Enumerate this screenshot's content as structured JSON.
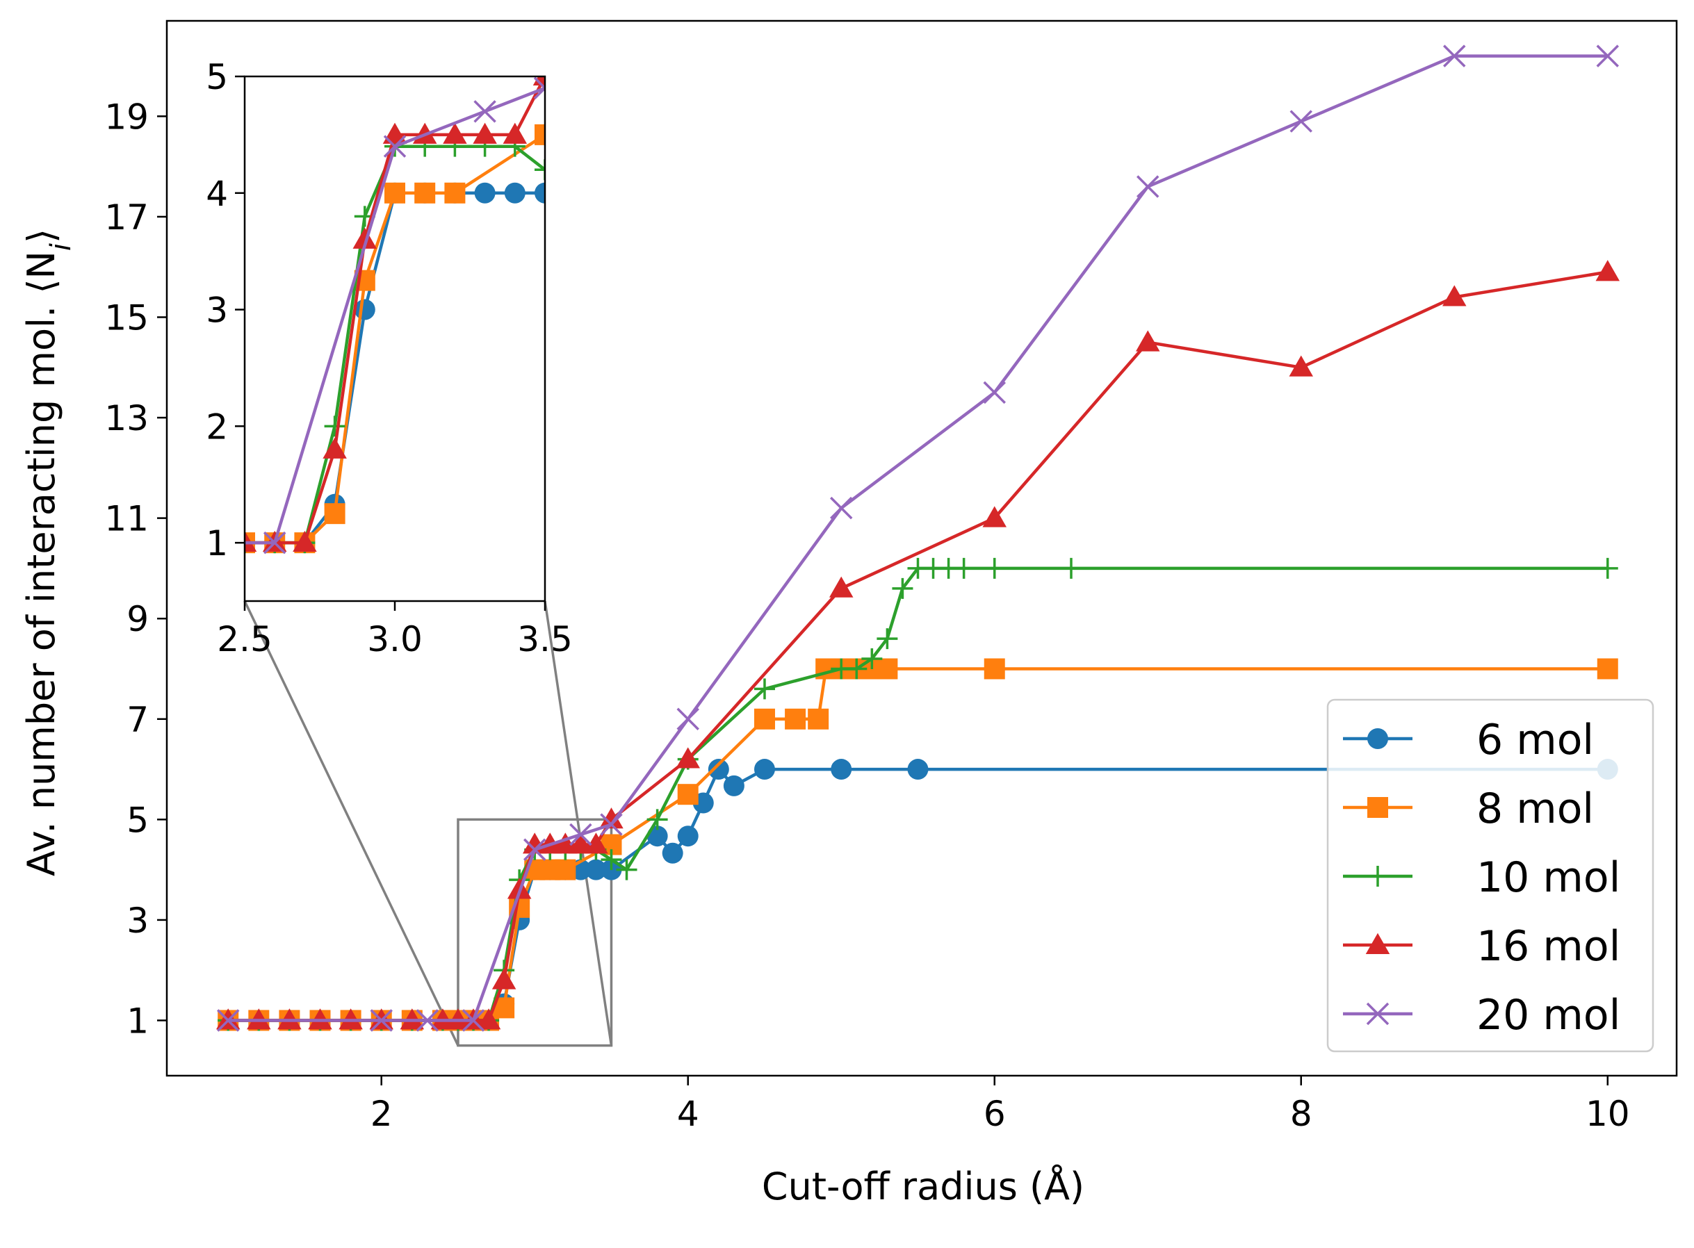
{
  "chart_data": {
    "type": "line",
    "title": "",
    "xlabel": "Cut-off radius (Å)",
    "ylabel": "Av. number of interacting mol. ⟨N",
    "ylabel_subscript": "i",
    "ylabel_close": "⟩",
    "xlim": [
      0.6,
      10.45
    ],
    "ylim": [
      -0.1,
      20.9
    ],
    "xticks": [
      "2",
      "4",
      "6",
      "8",
      "10"
    ],
    "yticks": [
      "1",
      "3",
      "5",
      "7",
      "9",
      "11",
      "13",
      "15",
      "17",
      "19"
    ],
    "grid": false,
    "legend_position": "lower right",
    "series": [
      {
        "name": "6 mol",
        "color": "#1f77b4",
        "marker": "circle",
        "x": [
          1.0,
          1.2,
          1.4,
          1.6,
          1.8,
          2.0,
          2.2,
          2.4,
          2.5,
          2.6,
          2.7,
          2.8,
          2.9,
          3.0,
          3.1,
          3.2,
          3.3,
          3.4,
          3.5,
          3.8,
          3.9,
          4.0,
          4.1,
          4.2,
          4.3,
          4.5,
          5.0,
          5.5,
          10.0
        ],
        "y": [
          1,
          1,
          1,
          1,
          1,
          1,
          1,
          1,
          1,
          1,
          1,
          1.33,
          3.0,
          4.0,
          4.0,
          4.0,
          4.0,
          4.0,
          4.0,
          4.67,
          4.33,
          4.67,
          5.33,
          6.0,
          5.67,
          6.0,
          6.0,
          6.0,
          6.0
        ]
      },
      {
        "name": "8 mol",
        "color": "#ff7f0e",
        "marker": "square",
        "x": [
          1.0,
          1.2,
          1.4,
          1.6,
          1.8,
          2.0,
          2.2,
          2.4,
          2.5,
          2.6,
          2.7,
          2.8,
          2.9,
          3.0,
          3.1,
          3.2,
          3.5,
          4.0,
          4.5,
          4.7,
          4.85,
          4.9,
          5.0,
          5.1,
          5.2,
          5.3,
          6.0,
          10.0
        ],
        "y": [
          1,
          1,
          1,
          1,
          1,
          1,
          1,
          1,
          1,
          1,
          1,
          1.25,
          3.25,
          4.0,
          4.0,
          4.0,
          4.5,
          5.5,
          7.0,
          7.0,
          7.0,
          8.0,
          8.0,
          8.0,
          8.0,
          8.0,
          8.0,
          8.0
        ]
      },
      {
        "name": "10 mol",
        "color": "#2ca02c",
        "marker": "plus",
        "x": [
          1.0,
          1.2,
          1.4,
          1.6,
          1.8,
          2.0,
          2.2,
          2.4,
          2.5,
          2.6,
          2.7,
          2.8,
          2.9,
          3.0,
          3.1,
          3.2,
          3.3,
          3.4,
          3.5,
          3.6,
          3.8,
          4.0,
          4.5,
          5.0,
          5.1,
          5.2,
          5.3,
          5.4,
          5.5,
          5.6,
          5.7,
          5.8,
          6.0,
          6.5,
          10.0
        ],
        "y": [
          1,
          1,
          1,
          1,
          1,
          1,
          1,
          1,
          1,
          1,
          1,
          2.0,
          3.8,
          4.4,
          4.4,
          4.4,
          4.4,
          4.4,
          4.2,
          4.0,
          5.0,
          6.2,
          7.6,
          8.0,
          8.0,
          8.2,
          8.6,
          9.6,
          10.0,
          10.0,
          10.0,
          10.0,
          10.0,
          10.0,
          10.0
        ]
      },
      {
        "name": "16 mol",
        "color": "#d62728",
        "marker": "triangle",
        "x": [
          1.0,
          1.2,
          1.4,
          1.6,
          1.8,
          2.0,
          2.2,
          2.4,
          2.5,
          2.6,
          2.7,
          2.8,
          2.9,
          3.0,
          3.1,
          3.2,
          3.3,
          3.4,
          3.5,
          4.0,
          5.0,
          6.0,
          7.0,
          8.0,
          9.0,
          10.0
        ],
        "y": [
          1,
          1,
          1,
          1,
          1,
          1,
          1,
          1,
          1,
          1,
          1,
          1.8,
          3.6,
          4.5,
          4.5,
          4.5,
          4.5,
          4.5,
          5.0,
          6.2,
          9.6,
          11.0,
          14.5,
          14.0,
          15.4,
          15.9
        ]
      },
      {
        "name": "20 mol",
        "color": "#9467bd",
        "marker": "x",
        "x": [
          1.0,
          2.0,
          2.3,
          2.6,
          3.0,
          3.3,
          3.5,
          4.0,
          5.0,
          6.0,
          7.0,
          8.0,
          9.0,
          10.0
        ],
        "y": [
          1,
          1,
          1,
          1,
          4.4,
          4.7,
          4.9,
          7.0,
          11.2,
          13.5,
          17.6,
          18.9,
          20.2,
          20.2
        ]
      }
    ],
    "inset": {
      "xlim": [
        2.5,
        3.5
      ],
      "ylim": [
        0.5,
        5.0
      ],
      "xticks": [
        "2.5",
        "3.0",
        "3.5"
      ],
      "yticks": [
        "1",
        "2",
        "3",
        "4",
        "5"
      ],
      "zoom_box_x": [
        2.5,
        3.5
      ],
      "zoom_box_y": [
        0.5,
        5.0
      ]
    }
  }
}
